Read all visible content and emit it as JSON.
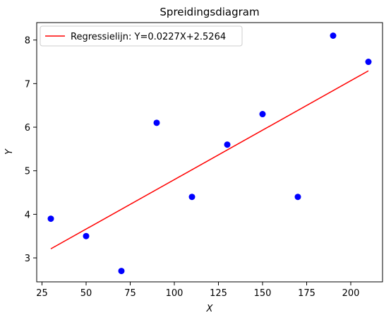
{
  "chart_data": {
    "type": "scatter",
    "title": "Spreidingsdiagram",
    "xlabel": "X",
    "ylabel": "Y",
    "xlim": [
      22,
      218
    ],
    "ylim": [
      2.45,
      8.4
    ],
    "xticks": [
      25,
      50,
      75,
      100,
      125,
      150,
      175,
      200
    ],
    "yticks": [
      3,
      4,
      5,
      6,
      7,
      8
    ],
    "grid": false,
    "legend_position": "top-left",
    "series": [
      {
        "type": "scatter",
        "color": "#0000ff",
        "points": [
          {
            "x": 30,
            "y": 3.9
          },
          {
            "x": 50,
            "y": 3.5
          },
          {
            "x": 70,
            "y": 2.7
          },
          {
            "x": 90,
            "y": 6.1
          },
          {
            "x": 110,
            "y": 4.4
          },
          {
            "x": 130,
            "y": 5.6
          },
          {
            "x": 150,
            "y": 6.3
          },
          {
            "x": 170,
            "y": 4.4
          },
          {
            "x": 190,
            "y": 8.1
          },
          {
            "x": 210,
            "y": 7.5
          }
        ]
      },
      {
        "type": "line",
        "name": "Regressielijn: Y=0.0227X+2.5264",
        "color": "#ff0000",
        "slope": 0.0227,
        "intercept": 2.5264,
        "x_range": [
          30,
          210
        ]
      }
    ]
  }
}
